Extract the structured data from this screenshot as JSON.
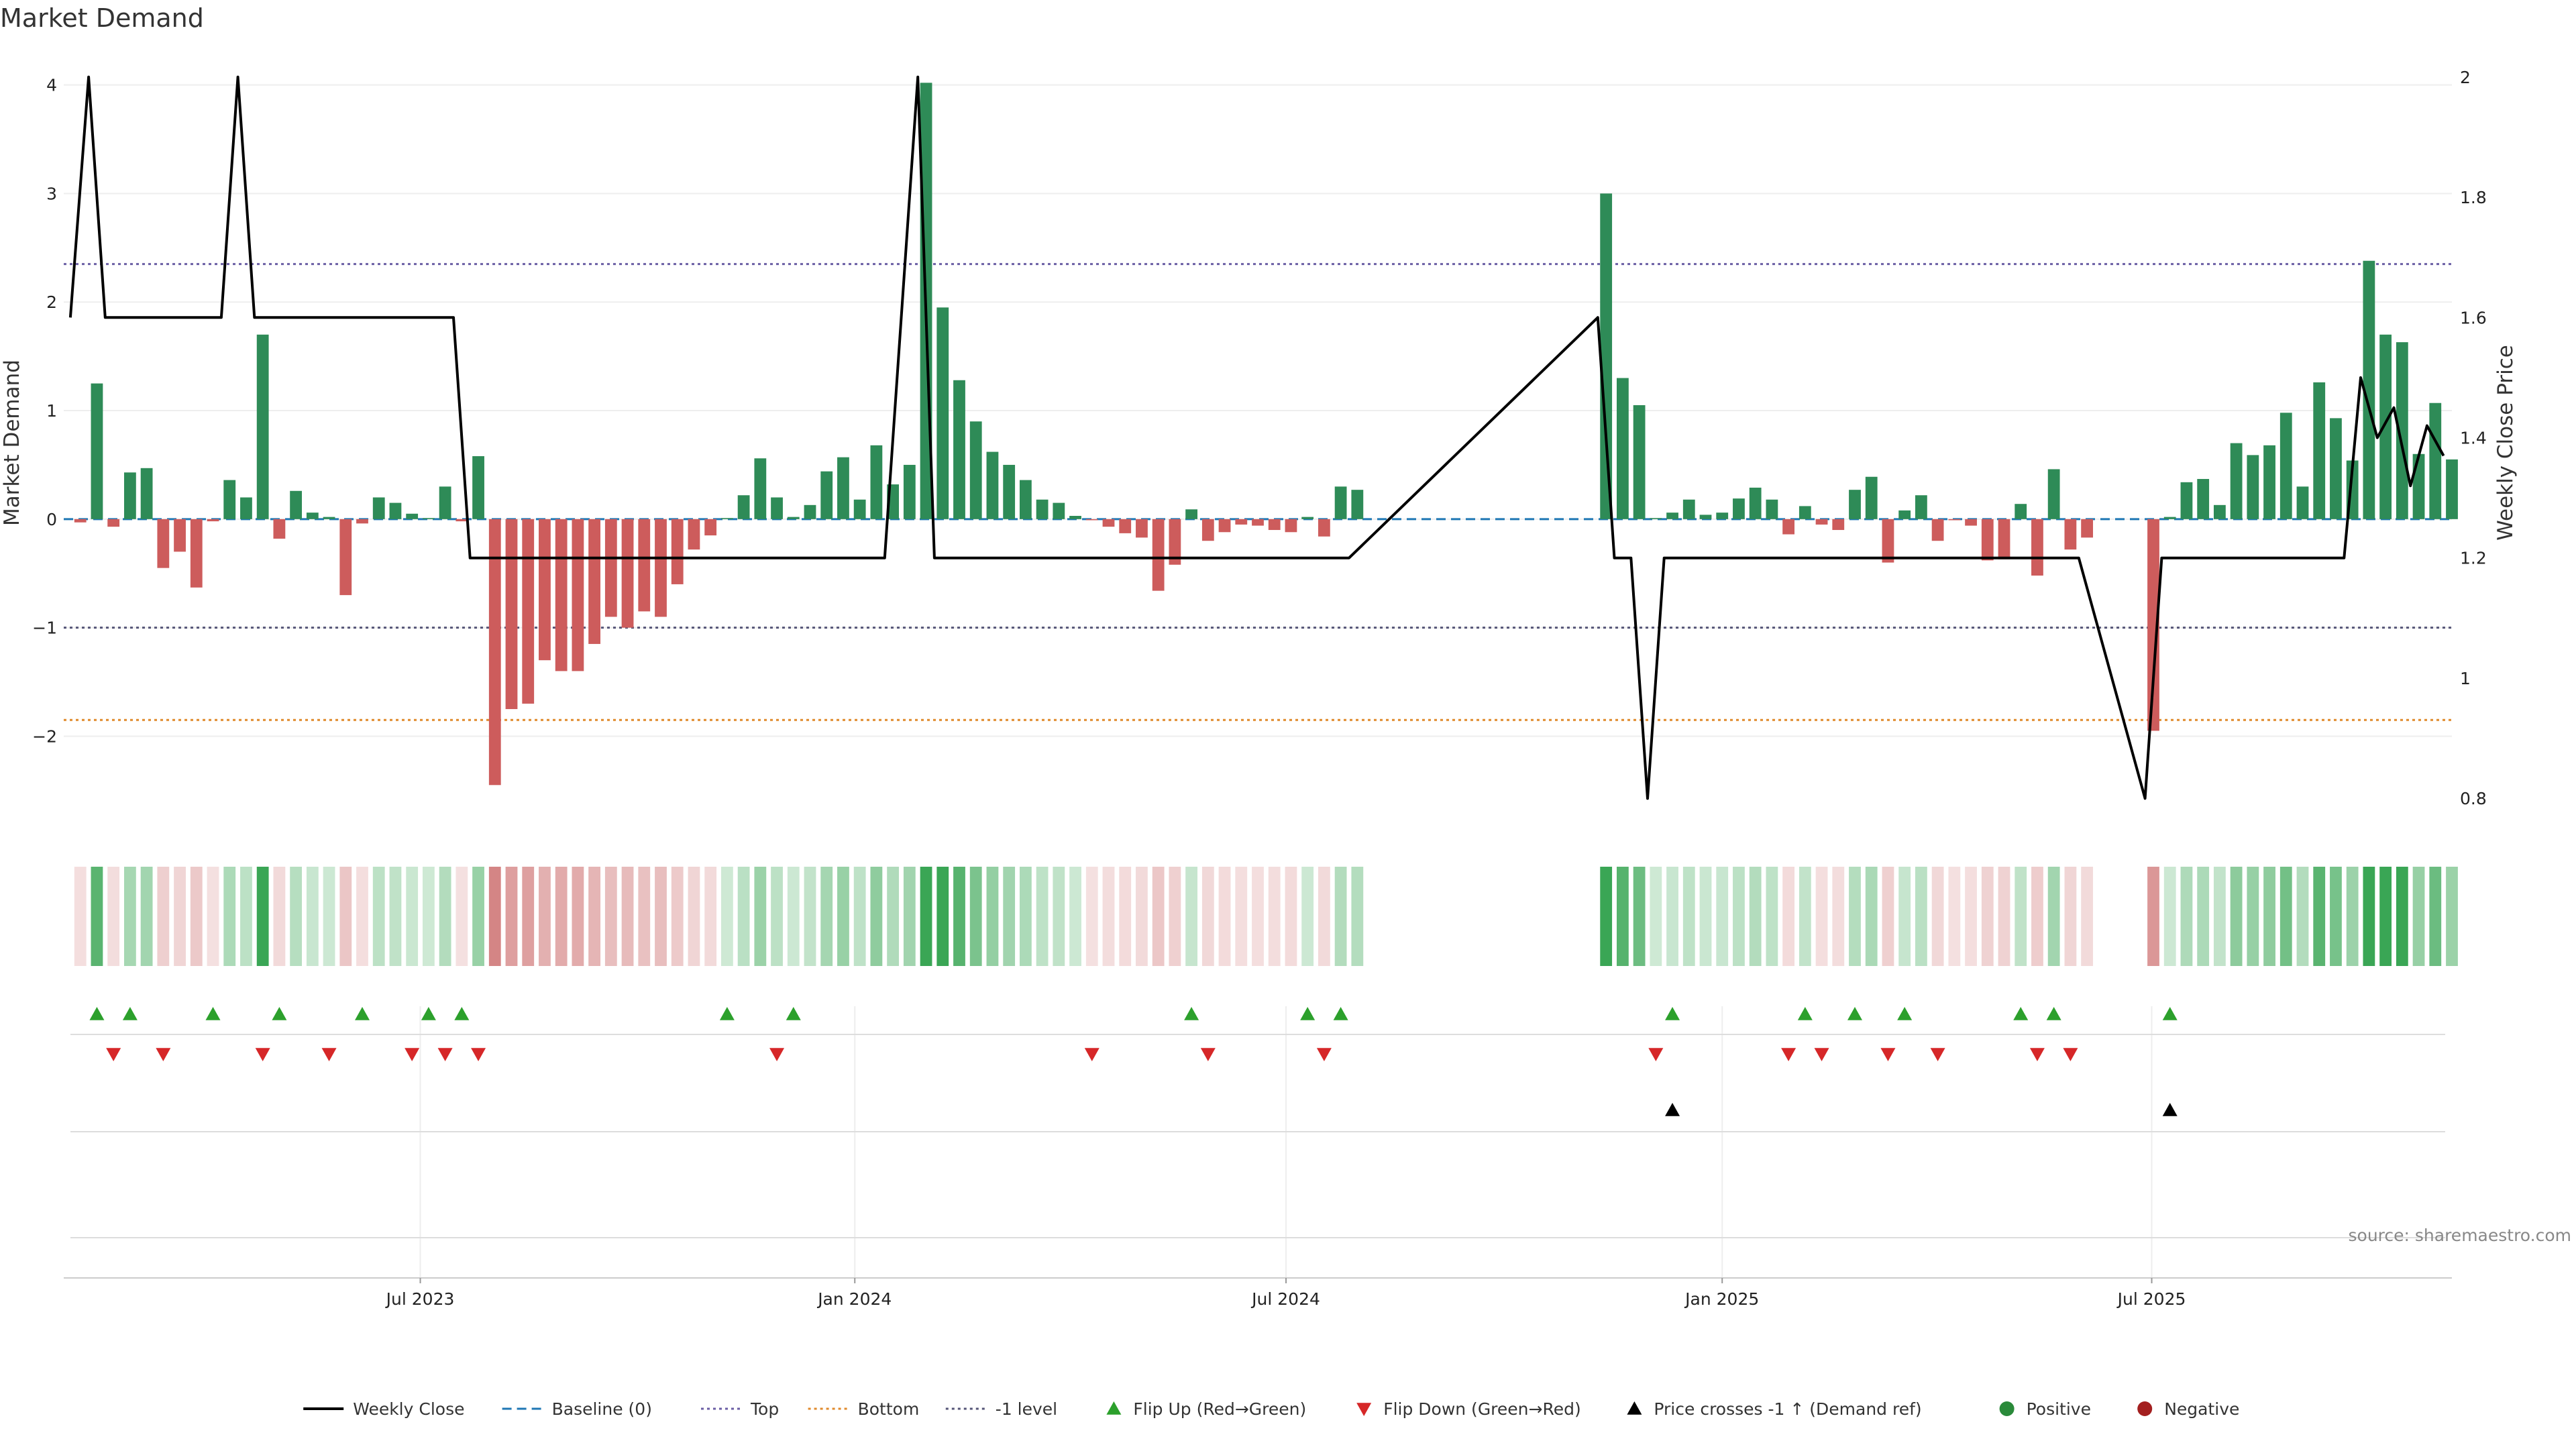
{
  "chart_data": {
    "type": "bar",
    "title": "Market Demand",
    "ylabel_left": "Market Demand",
    "ylabel_right": "Weekly Close Price",
    "source": "source: sharemaestro.com",
    "ylim_left": [
      -2.85,
      4.35
    ],
    "ylim_right": [
      0.75,
      2.05
    ],
    "yticks_left": [
      -2,
      -1,
      0,
      1,
      2,
      3,
      4
    ],
    "yticks_left_labels": [
      "−2",
      "−1",
      "0",
      "1",
      "2",
      "3",
      "4"
    ],
    "yticks_right": [
      0.8,
      1,
      1.2,
      1.4,
      1.6,
      1.8,
      2
    ],
    "yticks_right_labels": [
      "0.8",
      "1",
      "1.2",
      "1.4",
      "1.6",
      "1.8",
      "2"
    ],
    "x_range": [
      0,
      144
    ],
    "x_ticks": [
      {
        "x": 21.5,
        "label": "Jul 2023"
      },
      {
        "x": 47.7,
        "label": "Jan 2024"
      },
      {
        "x": 73.7,
        "label": "Jul 2024"
      },
      {
        "x": 100.0,
        "label": "Jan 2025"
      },
      {
        "x": 125.9,
        "label": "Jul 2025"
      }
    ],
    "reference_lines": [
      {
        "name": "Baseline (0)",
        "value": 0,
        "color": "#1f77b4",
        "style": "dashed"
      },
      {
        "name": "Top",
        "value": 2.35,
        "color": "#6b5fa5",
        "style": "dotted"
      },
      {
        "name": "Bottom",
        "value": -1.85,
        "color": "#e08a2c",
        "style": "dotted"
      },
      {
        "name": "-1 level",
        "value": -1,
        "color": "#555577",
        "style": "dotted"
      }
    ],
    "demand_series": [
      {
        "x": 1,
        "v": -0.03
      },
      {
        "x": 2,
        "v": 1.25
      },
      {
        "x": 3,
        "v": -0.07
      },
      {
        "x": 4,
        "v": 0.43
      },
      {
        "x": 5,
        "v": 0.47
      },
      {
        "x": 6,
        "v": -0.45
      },
      {
        "x": 7,
        "v": -0.3
      },
      {
        "x": 8,
        "v": -0.63
      },
      {
        "x": 9,
        "v": -0.02
      },
      {
        "x": 10,
        "v": 0.36
      },
      {
        "x": 11,
        "v": 0.2
      },
      {
        "x": 12,
        "v": 1.7
      },
      {
        "x": 13,
        "v": -0.18
      },
      {
        "x": 14,
        "v": 0.26
      },
      {
        "x": 15,
        "v": 0.06
      },
      {
        "x": 16,
        "v": 0.02
      },
      {
        "x": 17,
        "v": -0.7
      },
      {
        "x": 18,
        "v": -0.04
      },
      {
        "x": 19,
        "v": 0.2
      },
      {
        "x": 20,
        "v": 0.15
      },
      {
        "x": 21,
        "v": 0.05
      },
      {
        "x": 22,
        "v": 0.01
      },
      {
        "x": 23,
        "v": 0.3
      },
      {
        "x": 24,
        "v": -0.02
      },
      {
        "x": 25,
        "v": 0.58
      },
      {
        "x": 26,
        "v": -2.45
      },
      {
        "x": 27,
        "v": -1.75
      },
      {
        "x": 28,
        "v": -1.7
      },
      {
        "x": 29,
        "v": -1.3
      },
      {
        "x": 30,
        "v": -1.4
      },
      {
        "x": 31,
        "v": -1.4
      },
      {
        "x": 32,
        "v": -1.15
      },
      {
        "x": 33,
        "v": -0.9
      },
      {
        "x": 34,
        "v": -1.0
      },
      {
        "x": 35,
        "v": -0.85
      },
      {
        "x": 36,
        "v": -0.9
      },
      {
        "x": 37,
        "v": -0.6
      },
      {
        "x": 38,
        "v": -0.28
      },
      {
        "x": 39,
        "v": -0.15
      },
      {
        "x": 40,
        "v": 0.01
      },
      {
        "x": 41,
        "v": 0.22
      },
      {
        "x": 42,
        "v": 0.56
      },
      {
        "x": 43,
        "v": 0.2
      },
      {
        "x": 44,
        "v": 0.02
      },
      {
        "x": 45,
        "v": 0.13
      },
      {
        "x": 46,
        "v": 0.44
      },
      {
        "x": 47,
        "v": 0.57
      },
      {
        "x": 48,
        "v": 0.18
      },
      {
        "x": 49,
        "v": 0.68
      },
      {
        "x": 50,
        "v": 0.32
      },
      {
        "x": 51,
        "v": 0.5
      },
      {
        "x": 52,
        "v": 4.02
      },
      {
        "x": 53,
        "v": 1.95
      },
      {
        "x": 54,
        "v": 1.28
      },
      {
        "x": 55,
        "v": 0.9
      },
      {
        "x": 56,
        "v": 0.62
      },
      {
        "x": 57,
        "v": 0.5
      },
      {
        "x": 58,
        "v": 0.36
      },
      {
        "x": 59,
        "v": 0.18
      },
      {
        "x": 60,
        "v": 0.15
      },
      {
        "x": 61,
        "v": 0.03
      },
      {
        "x": 62,
        "v": -0.01
      },
      {
        "x": 63,
        "v": -0.07
      },
      {
        "x": 64,
        "v": -0.13
      },
      {
        "x": 65,
        "v": -0.17
      },
      {
        "x": 66,
        "v": -0.66
      },
      {
        "x": 67,
        "v": -0.42
      },
      {
        "x": 68,
        "v": 0.09
      },
      {
        "x": 69,
        "v": -0.2
      },
      {
        "x": 70,
        "v": -0.12
      },
      {
        "x": 71,
        "v": -0.05
      },
      {
        "x": 72,
        "v": -0.06
      },
      {
        "x": 73,
        "v": -0.1
      },
      {
        "x": 74,
        "v": -0.12
      },
      {
        "x": 75,
        "v": 0.02
      },
      {
        "x": 76,
        "v": -0.16
      },
      {
        "x": 77,
        "v": 0.3
      },
      {
        "x": 78,
        "v": 0.27
      },
      {
        "x": 93,
        "v": 3.0
      },
      {
        "x": 94,
        "v": 1.3
      },
      {
        "x": 95,
        "v": 1.05
      },
      {
        "x": 96,
        "v": 0.01
      },
      {
        "x": 97,
        "v": 0.06
      },
      {
        "x": 98,
        "v": 0.18
      },
      {
        "x": 99,
        "v": 0.04
      },
      {
        "x": 100,
        "v": 0.06
      },
      {
        "x": 101,
        "v": 0.19
      },
      {
        "x": 102,
        "v": 0.29
      },
      {
        "x": 103,
        "v": 0.18
      },
      {
        "x": 104,
        "v": -0.14
      },
      {
        "x": 105,
        "v": 0.12
      },
      {
        "x": 106,
        "v": -0.05
      },
      {
        "x": 107,
        "v": -0.1
      },
      {
        "x": 108,
        "v": 0.27
      },
      {
        "x": 109,
        "v": 0.39
      },
      {
        "x": 110,
        "v": -0.4
      },
      {
        "x": 111,
        "v": 0.08
      },
      {
        "x": 112,
        "v": 0.22
      },
      {
        "x": 113,
        "v": -0.2
      },
      {
        "x": 114,
        "v": -0.01
      },
      {
        "x": 115,
        "v": -0.06
      },
      {
        "x": 116,
        "v": -0.38
      },
      {
        "x": 117,
        "v": -0.37
      },
      {
        "x": 118,
        "v": 0.14
      },
      {
        "x": 119,
        "v": -0.52
      },
      {
        "x": 120,
        "v": 0.46
      },
      {
        "x": 121,
        "v": -0.28
      },
      {
        "x": 122,
        "v": -0.17
      },
      {
        "x": 126,
        "v": -1.95
      },
      {
        "x": 127,
        "v": 0.02
      },
      {
        "x": 128,
        "v": 0.34
      },
      {
        "x": 129,
        "v": 0.37
      },
      {
        "x": 130,
        "v": 0.13
      },
      {
        "x": 131,
        "v": 0.7
      },
      {
        "x": 132,
        "v": 0.59
      },
      {
        "x": 133,
        "v": 0.68
      },
      {
        "x": 134,
        "v": 0.98
      },
      {
        "x": 135,
        "v": 0.3
      },
      {
        "x": 136,
        "v": 1.26
      },
      {
        "x": 137,
        "v": 0.93
      },
      {
        "x": 138,
        "v": 0.54
      },
      {
        "x": 139,
        "v": 2.38
      },
      {
        "x": 140,
        "v": 1.7
      },
      {
        "x": 141,
        "v": 1.63
      },
      {
        "x": 142,
        "v": 0.6
      },
      {
        "x": 143,
        "v": 1.07
      },
      {
        "x": 144,
        "v": 0.55
      }
    ],
    "weekly_close": [
      [
        0.4,
        1.6
      ],
      [
        1.5,
        2.0
      ],
      [
        2.5,
        1.6
      ],
      [
        9.5,
        1.6
      ],
      [
        10.5,
        2.0
      ],
      [
        11.5,
        1.6
      ],
      [
        23.5,
        1.6
      ],
      [
        24.5,
        1.2
      ],
      [
        49.5,
        1.2
      ],
      [
        51.5,
        2.0
      ],
      [
        52.5,
        1.2
      ],
      [
        77.5,
        1.2
      ],
      [
        92.5,
        1.6
      ],
      [
        93.5,
        1.2
      ],
      [
        94.5,
        1.2
      ],
      [
        95.5,
        0.8
      ],
      [
        96.5,
        1.2
      ],
      [
        121.5,
        1.2
      ],
      [
        125.5,
        0.8
      ],
      [
        126.5,
        1.2
      ],
      [
        137.5,
        1.2
      ],
      [
        138.5,
        1.5
      ],
      [
        139.5,
        1.4
      ],
      [
        140.5,
        1.45
      ],
      [
        141.5,
        1.32
      ],
      [
        142.5,
        1.42
      ],
      [
        143.5,
        1.37
      ]
    ],
    "flip_up_x": [
      2,
      4,
      9,
      13,
      18,
      22,
      24,
      40,
      44,
      68,
      75,
      77,
      97,
      105,
      108,
      111,
      118,
      120,
      127
    ],
    "flip_down_x": [
      3,
      6,
      12,
      16,
      21,
      23,
      25,
      43,
      62,
      69,
      76,
      96,
      104,
      106,
      110,
      113,
      119,
      121
    ],
    "price_cross_x": [
      97,
      127
    ],
    "legend": [
      {
        "label": "Weekly Close",
        "kind": "line",
        "color": "#000000"
      },
      {
        "label": "Baseline (0)",
        "kind": "dashed",
        "color": "#1f77b4"
      },
      {
        "label": "Top",
        "kind": "dotted",
        "color": "#6b5fa5"
      },
      {
        "label": "Bottom",
        "kind": "dotted",
        "color": "#e08a2c"
      },
      {
        "label": "-1 level",
        "kind": "dotted",
        "color": "#555577"
      },
      {
        "label": "Flip Up (Red→Green)",
        "kind": "tri-up",
        "color": "#2ca02c"
      },
      {
        "label": "Flip Down (Green→Red)",
        "kind": "tri-down",
        "color": "#d62728"
      },
      {
        "label": "Price crosses -1 ↑ (Demand ref)",
        "kind": "tri-up",
        "color": "#000000"
      },
      {
        "label": "Positive",
        "kind": "dot",
        "color": "#2a8a3a"
      },
      {
        "label": "Negative",
        "kind": "dot",
        "color": "#a31f1f"
      }
    ],
    "colors": {
      "positive_bar": "#2e8b57",
      "negative_bar": "#cd5c5c",
      "close_line": "#000000",
      "strip_positive": "#3aa655",
      "strip_negative": "#c96464"
    }
  }
}
